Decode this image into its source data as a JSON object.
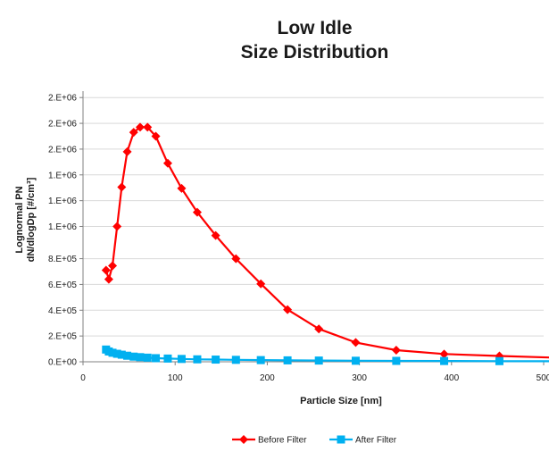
{
  "chart_data": {
    "type": "line",
    "title": [
      "Low Idle",
      "Size Distribution"
    ],
    "xlabel": "Particle Size [nm]",
    "ylabel": [
      "Lognormal PN",
      "dN/dlogDp [#/cm³]"
    ],
    "xlim": [
      0,
      500
    ],
    "ylim": [
      0,
      2100000
    ],
    "x_ticks": [
      0,
      100,
      200,
      300,
      400,
      500
    ],
    "y_ticks": [
      {
        "value": 0,
        "label": "0.E+00"
      },
      {
        "value": 200000,
        "label": "2.E+05"
      },
      {
        "value": 400000,
        "label": "4.E+05"
      },
      {
        "value": 600000,
        "label": "6.E+05"
      },
      {
        "value": 800000,
        "label": "8.E+05"
      },
      {
        "value": 1050000,
        "label": "1.E+06"
      },
      {
        "value": 1250000,
        "label": "1.E+06"
      },
      {
        "value": 1450000,
        "label": "1.E+06"
      },
      {
        "value": 1650000,
        "label": "2.E+06"
      },
      {
        "value": 1850000,
        "label": "2.E+06"
      },
      {
        "value": 2050000,
        "label": "2.E+06"
      }
    ],
    "grid": "horizontal",
    "legend_position": "bottom",
    "series": [
      {
        "name": "Before Filter",
        "color": "#ff0000",
        "marker": "diamond",
        "x": [
          25,
          28,
          32,
          37,
          42,
          48,
          55,
          62,
          70,
          79,
          92,
          107,
          124,
          144,
          166,
          193,
          222,
          256,
          296,
          340,
          392,
          452,
          522
        ],
        "y": [
          710000,
          640000,
          745000,
          1050000,
          1355000,
          1630000,
          1780000,
          1820000,
          1820000,
          1750000,
          1540000,
          1345000,
          1160000,
          980000,
          800000,
          605000,
          405000,
          255000,
          150000,
          90000,
          60000,
          45000,
          30000
        ]
      },
      {
        "name": "After Filter",
        "color": "#00b0f0",
        "marker": "square",
        "x": [
          25,
          28,
          32,
          37,
          42,
          48,
          55,
          62,
          70,
          79,
          92,
          107,
          124,
          144,
          166,
          193,
          222,
          256,
          296,
          340,
          392,
          452,
          522
        ],
        "y": [
          95000,
          80000,
          70000,
          62000,
          55000,
          47000,
          40000,
          36000,
          32000,
          28000,
          25000,
          22000,
          19000,
          17000,
          15000,
          13000,
          11000,
          9500,
          8000,
          7000,
          6000,
          5000,
          4500
        ]
      }
    ]
  }
}
